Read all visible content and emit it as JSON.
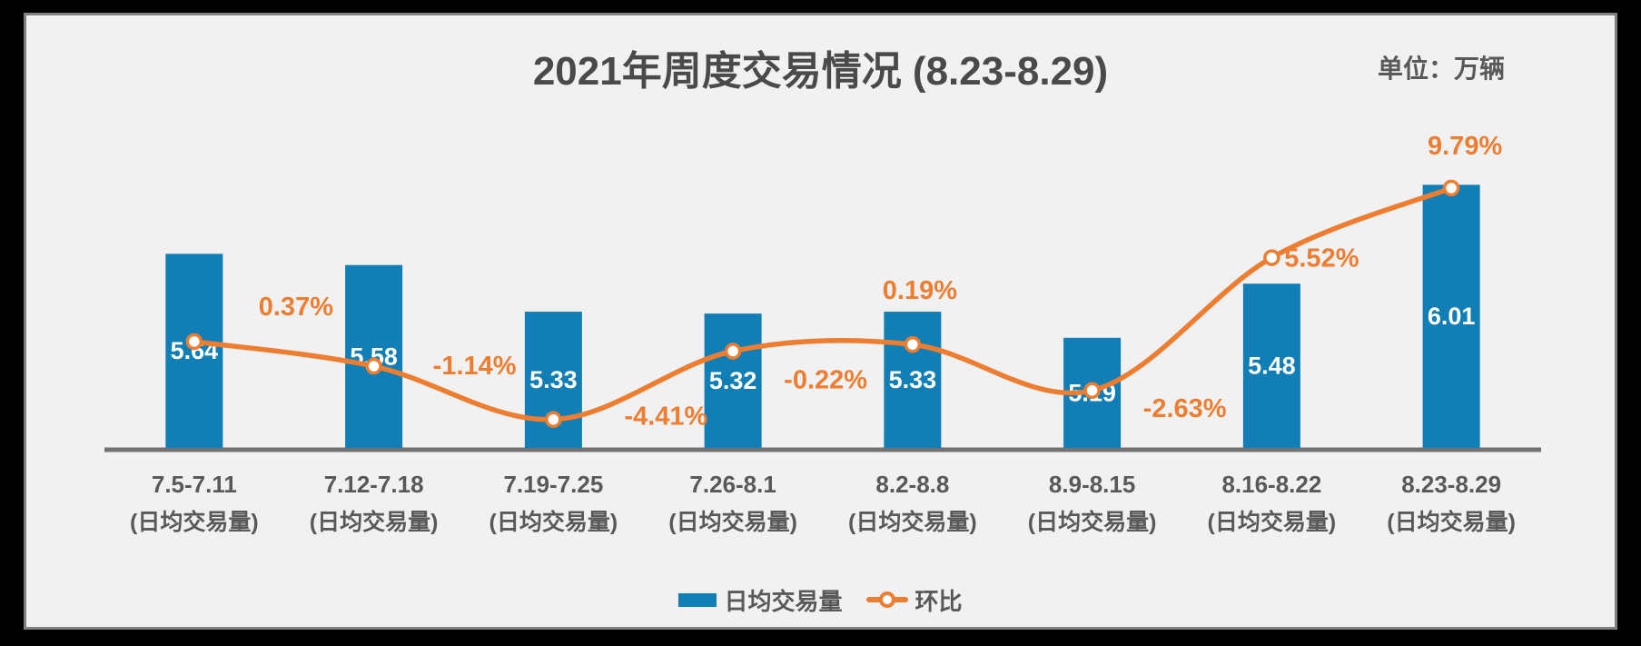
{
  "colors": {
    "outer_bg": "#000000",
    "panel_bg": "#F1F1F2",
    "panel_border": "#7F7F7F",
    "axis_line": "#767171",
    "text_gray": "#595959",
    "title_gray": "#4A4A4A",
    "bar_blue": "#117EB6",
    "line_orange": "#ED7D31",
    "value_label_white": "#FFFFFF"
  },
  "chart_data": {
    "type": "combo-bar-line",
    "title": "2021年周度交易情况 (8.23-8.29)",
    "unit_note": "单位：万辆",
    "categories": [
      "7.5-7.11",
      "7.12-7.18",
      "7.19-7.25",
      "7.26-8.1",
      "8.2-8.8",
      "8.9-8.15",
      "8.16-8.22",
      "8.23-8.29"
    ],
    "category_sublabel": "(日均交易量)",
    "series": [
      {
        "name": "日均交易量",
        "type": "bar",
        "values": [
          5.64,
          5.58,
          5.33,
          5.32,
          5.33,
          5.19,
          5.48,
          6.01
        ],
        "labels": [
          "5.64",
          "5.58",
          "5.33",
          "5.32",
          "5.33",
          "5.19",
          "5.48",
          "6.01"
        ],
        "color": "#117EB6",
        "value_label_color": "#FFFFFF"
      },
      {
        "name": "环比",
        "type": "line",
        "unit": "%",
        "values": [
          0.37,
          -1.14,
          -4.41,
          -0.22,
          0.19,
          -2.63,
          5.52,
          9.79
        ],
        "labels": [
          "0.37%",
          "-1.14%",
          "-4.41%",
          "-0.22%",
          "0.19%",
          "-2.63%",
          "5.52%",
          "9.79%"
        ],
        "color": "#ED7D31",
        "marker": "open-circle"
      }
    ],
    "layout_hints": {
      "grid": false,
      "legend_position": "bottom-center",
      "value_labels": "inside-center",
      "bars_not_zero_based": true,
      "bar_axis_min": 4.6,
      "line_on_secondary_axis": true,
      "smooth_line": true
    }
  }
}
